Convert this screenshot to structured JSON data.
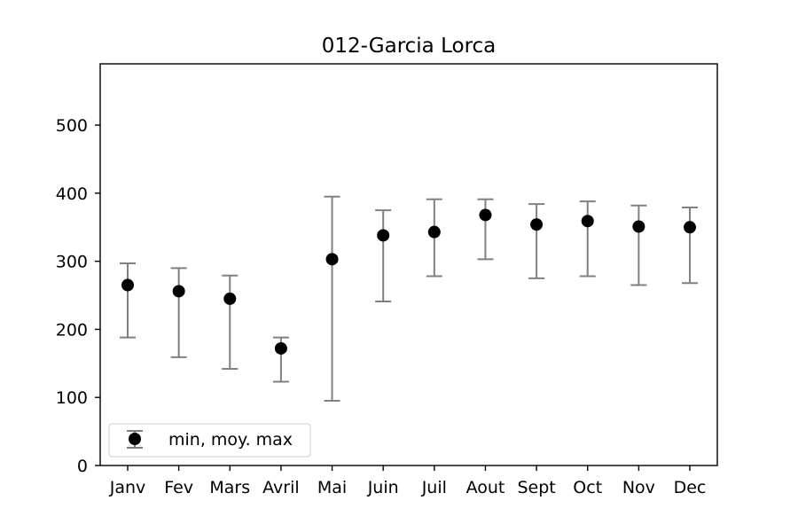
{
  "chart_data": {
    "type": "scatter",
    "title": "012-Garcia Lorca",
    "xlabel": "",
    "ylabel": "",
    "categories": [
      "Janv",
      "Fev",
      "Mars",
      "Avril",
      "Mai",
      "Juin",
      "Juil",
      "Aout",
      "Sept",
      "Oct",
      "Nov",
      "Dec"
    ],
    "series": [
      {
        "name": "min, moy. max",
        "mean": [
          265,
          256,
          245,
          172,
          303,
          338,
          343,
          368,
          354,
          359,
          351,
          350
        ],
        "min": [
          188,
          159,
          142,
          123,
          95,
          241,
          278,
          303,
          275,
          278,
          265,
          268
        ],
        "max": [
          297,
          290,
          279,
          188,
          395,
          375,
          391,
          391,
          384,
          388,
          382,
          379
        ]
      }
    ],
    "ylim": [
      0,
      590
    ],
    "yticks": [
      0,
      100,
      200,
      300,
      400,
      500
    ],
    "grid": false,
    "legend_position": "lower-left",
    "colors": {
      "point": "#000000",
      "errorbar": "#808080"
    }
  }
}
